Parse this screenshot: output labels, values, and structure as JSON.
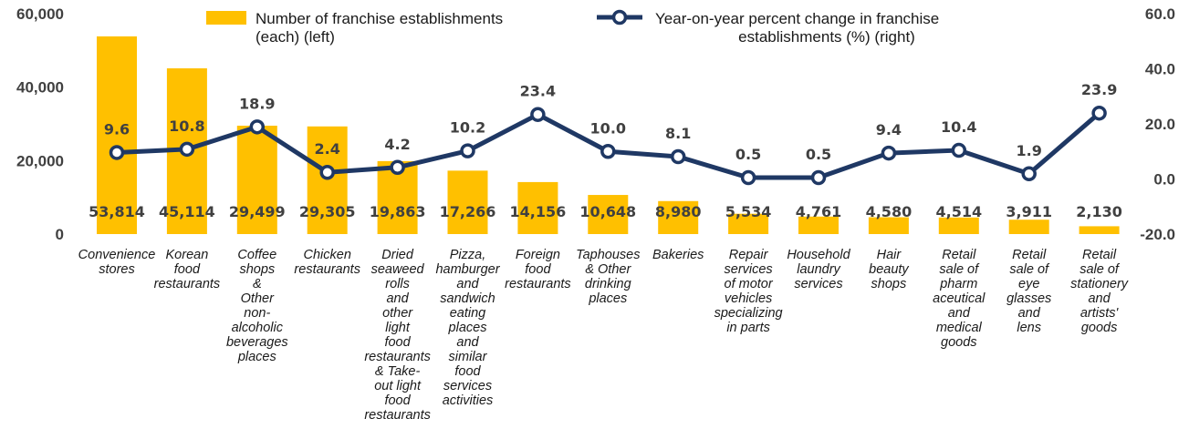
{
  "chart_data": {
    "type": "bar",
    "categories": [
      [
        "Convenience",
        "stores"
      ],
      [
        "Korean",
        "food",
        "restaurants"
      ],
      [
        "Coffee",
        "shops",
        "&",
        "Other",
        "non-",
        "alcoholic",
        "beverages",
        "places"
      ],
      [
        "Chicken",
        "restaurants"
      ],
      [
        "Dried",
        "seaweed",
        "rolls",
        "and",
        "other",
        "light",
        "food",
        "restaurants",
        "& Take-",
        "out light",
        "food",
        "restaurants"
      ],
      [
        "Pizza,",
        "hamburger",
        "and",
        "sandwich",
        "eating",
        "places",
        "and",
        "similar",
        "food",
        "services",
        "activities"
      ],
      [
        "Foreign",
        "food",
        "restaurants"
      ],
      [
        "Taphouses",
        "& Other",
        "drinking",
        "places"
      ],
      [
        "Bakeries"
      ],
      [
        "Repair",
        "services",
        "of motor",
        "vehicles",
        "specializing",
        "in parts"
      ],
      [
        "Household",
        "laundry",
        "services"
      ],
      [
        "Hair",
        "beauty",
        "shops"
      ],
      [
        "Retail",
        "sale of",
        "pharm",
        "aceutical",
        "and",
        "medical",
        "goods"
      ],
      [
        "Retail",
        "sale of",
        "eye",
        "glasses",
        "and",
        "lens"
      ],
      [
        "Retail",
        "sale of",
        "stationery",
        "and",
        "artists'",
        "goods"
      ]
    ],
    "series": [
      {
        "name": "Number of franchise establishments (each) (left)",
        "type": "bar",
        "axis": "left",
        "color": "#FFC000",
        "values": [
          53814,
          45114,
          29499,
          29305,
          19863,
          17266,
          14156,
          10648,
          8980,
          5534,
          4761,
          4580,
          4514,
          3911,
          2130
        ],
        "labels": [
          "53,814",
          "45,114",
          "29,499",
          "29,305",
          "19,863",
          "17,266",
          "14,156",
          "10,648",
          "8,980",
          "5,534",
          "4,761",
          "4,580",
          "4,514",
          "3,911",
          "2,130"
        ]
      },
      {
        "name": "Year-on-year percent change in franchise establishments (%) (right)",
        "type": "line",
        "axis": "right",
        "color": "#1F3864",
        "values": [
          9.6,
          10.8,
          18.9,
          2.4,
          4.2,
          10.2,
          23.4,
          10.0,
          8.1,
          0.5,
          0.5,
          9.4,
          10.4,
          1.9,
          23.9
        ],
        "labels": [
          "9.6",
          "10.8",
          "18.9",
          "2.4",
          "4.2",
          "10.2",
          "23.4",
          "10.0",
          "8.1",
          "0.5",
          "0.5",
          "9.4",
          "10.4",
          "1.9",
          "23.9"
        ]
      }
    ],
    "y_left": {
      "min": 0,
      "max": 60000,
      "ticks": [
        "0",
        "20,000",
        "40,000",
        "60,000"
      ],
      "tick_values": [
        0,
        20000,
        40000,
        60000
      ]
    },
    "y_right": {
      "min": -20,
      "max": 60,
      "ticks": [
        "-20.0",
        "0.0",
        "20.0",
        "40.0",
        "60.0"
      ],
      "tick_values": [
        -20,
        0,
        20,
        40,
        60
      ]
    },
    "legend": {
      "position": "top",
      "items": [
        {
          "lines": [
            "Number of franchise establishments",
            "(each) (left)"
          ],
          "kind": "bar"
        },
        {
          "lines": [
            "Year-on-year percent change in franchise",
            "establishments (%) (right)"
          ],
          "kind": "line"
        }
      ]
    },
    "grid": false
  }
}
